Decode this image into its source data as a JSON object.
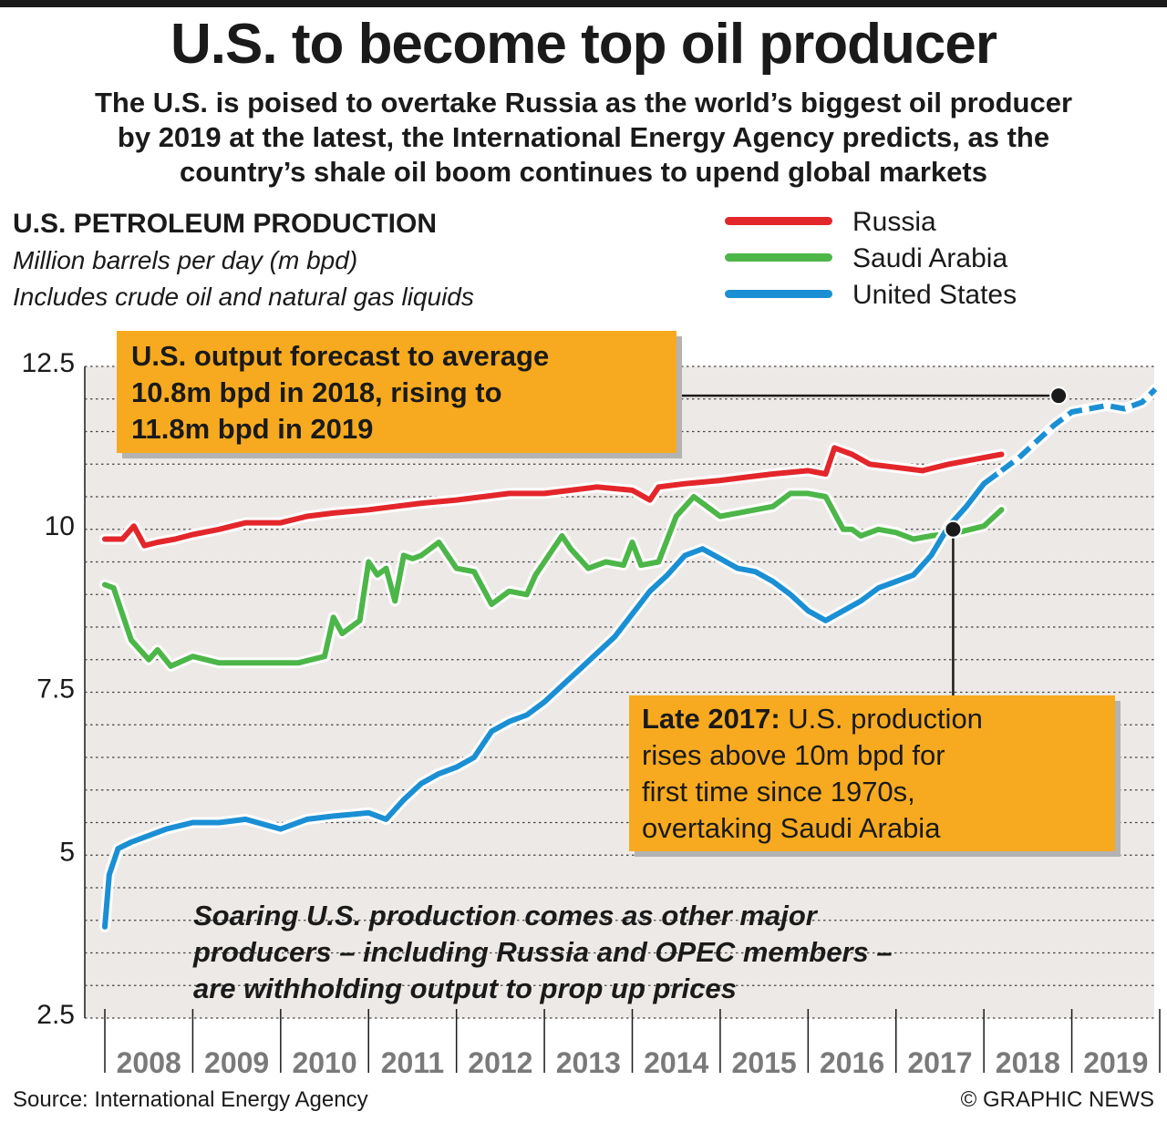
{
  "headline": "U.S. to become top oil producer",
  "intro": [
    "The U.S. is poised to overtake Russia as the world’s biggest oil producer",
    "by 2019 at the latest, the International Energy Agency predicts, as the",
    "country’s shale oil boom continues to upend global markets"
  ],
  "chart_title": "U.S. PETROLEUM PRODUCTION",
  "chart_subtitle_1": "Million barrels per day (m bpd)",
  "chart_subtitle_2": "Includes crude oil and natural gas liquids",
  "callout_forecast": [
    "U.S. output forecast to average",
    "10.8m bpd in 2018, rising to",
    "11.8m bpd in 2019"
  ],
  "callout_late2017": {
    "bold": "Late 2017:",
    "lines": [
      " U.S. production",
      "rises above 10m bpd for",
      "first time since 1970s,",
      "overtaking Saudi Arabia"
    ]
  },
  "note": [
    "Soaring U.S. production comes as other major",
    "producers – including Russia and OPEC members –",
    "are withholding output to prop up prices"
  ],
  "source": "Source: International Energy Agency",
  "credit": "© GRAPHIC NEWS",
  "colors": {
    "Russia": "#e3262a",
    "Saudi Arabia": "#4cb648",
    "United States": "#1b8fd4",
    "callout": "#f7aa1f",
    "plot_bg": "#ede9e6"
  },
  "chart_data": {
    "type": "line",
    "title": "U.S. PETROLEUM PRODUCTION",
    "ylabel": "Million barrels per day (m bpd)",
    "ylim": [
      2.5,
      12.5
    ],
    "yticks": [
      "12.5",
      "10",
      "7.5",
      "5",
      "2.5"
    ],
    "xlim": [
      2008,
      2020
    ],
    "xticks": [
      "2008",
      "2009",
      "2010",
      "2011",
      "2012",
      "2013",
      "2014",
      "2015",
      "2016",
      "2017",
      "2018",
      "2019"
    ],
    "grid": "dotted horizontal",
    "legend": "top-right",
    "series": [
      {
        "name": "Russia",
        "x": [
          2008.0,
          2008.2,
          2008.33,
          2008.45,
          2008.6,
          2008.8,
          2009.0,
          2009.3,
          2009.6,
          2010.0,
          2010.3,
          2010.6,
          2011.0,
          2011.3,
          2011.6,
          2012.0,
          2012.3,
          2012.6,
          2013.0,
          2013.3,
          2013.6,
          2014.0,
          2014.2,
          2014.3,
          2014.6,
          2015.0,
          2015.3,
          2015.6,
          2016.0,
          2016.2,
          2016.3,
          2016.5,
          2016.7,
          2017.0,
          2017.3,
          2017.6,
          2018.0,
          2018.2
        ],
        "y": [
          9.85,
          9.85,
          10.05,
          9.75,
          9.8,
          9.85,
          9.92,
          10.0,
          10.1,
          10.1,
          10.2,
          10.25,
          10.3,
          10.35,
          10.4,
          10.45,
          10.5,
          10.55,
          10.55,
          10.6,
          10.65,
          10.6,
          10.45,
          10.65,
          10.7,
          10.75,
          10.8,
          10.85,
          10.9,
          10.85,
          11.25,
          11.15,
          11.0,
          10.95,
          10.9,
          11.0,
          11.1,
          11.15
        ]
      },
      {
        "name": "Saudi Arabia",
        "x": [
          2008.0,
          2008.1,
          2008.3,
          2008.5,
          2008.6,
          2008.75,
          2009.0,
          2009.3,
          2009.6,
          2009.9,
          2010.2,
          2010.5,
          2010.6,
          2010.7,
          2010.9,
          2011.0,
          2011.1,
          2011.2,
          2011.3,
          2011.4,
          2011.5,
          2011.6,
          2011.8,
          2012.0,
          2012.2,
          2012.4,
          2012.6,
          2012.8,
          2012.9,
          2013.0,
          2013.2,
          2013.3,
          2013.5,
          2013.7,
          2013.9,
          2014.0,
          2014.1,
          2014.3,
          2014.5,
          2014.7,
          2014.9,
          2015.0,
          2015.2,
          2015.4,
          2015.6,
          2015.8,
          2016.0,
          2016.2,
          2016.4,
          2016.5,
          2016.6,
          2016.8,
          2017.0,
          2017.2,
          2017.4,
          2017.7,
          2018.0,
          2018.2
        ],
        "y": [
          9.15,
          9.1,
          8.3,
          8.0,
          8.15,
          7.9,
          8.05,
          7.95,
          7.95,
          7.95,
          7.95,
          8.05,
          8.65,
          8.4,
          8.6,
          9.5,
          9.3,
          9.4,
          8.9,
          9.6,
          9.55,
          9.6,
          9.8,
          9.4,
          9.35,
          8.85,
          9.05,
          9.0,
          9.3,
          9.5,
          9.9,
          9.7,
          9.4,
          9.5,
          9.45,
          9.8,
          9.45,
          9.5,
          10.2,
          10.5,
          10.3,
          10.2,
          10.25,
          10.3,
          10.35,
          10.55,
          10.55,
          10.5,
          10.0,
          10.0,
          9.9,
          10.0,
          9.95,
          9.85,
          9.9,
          9.95,
          10.05,
          10.3
        ]
      },
      {
        "name": "United States",
        "x": [
          2008.0,
          2008.05,
          2008.15,
          2008.3,
          2008.5,
          2008.7,
          2009.0,
          2009.3,
          2009.6,
          2010.0,
          2010.3,
          2010.6,
          2011.0,
          2011.2,
          2011.4,
          2011.6,
          2011.8,
          2012.0,
          2012.2,
          2012.4,
          2012.6,
          2012.8,
          2013.0,
          2013.2,
          2013.4,
          2013.6,
          2013.8,
          2014.0,
          2014.2,
          2014.4,
          2014.6,
          2014.8,
          2015.0,
          2015.2,
          2015.4,
          2015.6,
          2015.8,
          2016.0,
          2016.2,
          2016.4,
          2016.6,
          2016.8,
          2017.0,
          2017.2,
          2017.4,
          2017.6,
          2017.8,
          2018.0,
          2018.2
        ],
        "y": [
          3.9,
          4.7,
          5.1,
          5.2,
          5.3,
          5.4,
          5.5,
          5.5,
          5.55,
          5.4,
          5.55,
          5.6,
          5.65,
          5.55,
          5.85,
          6.1,
          6.25,
          6.35,
          6.5,
          6.9,
          7.05,
          7.15,
          7.35,
          7.6,
          7.85,
          8.1,
          8.35,
          8.7,
          9.05,
          9.3,
          9.6,
          9.7,
          9.55,
          9.4,
          9.35,
          9.2,
          9.0,
          8.75,
          8.6,
          8.75,
          8.9,
          9.1,
          9.2,
          9.3,
          9.6,
          10.05,
          10.35,
          10.7,
          10.9
        ]
      },
      {
        "name": "United States forecast",
        "x": [
          2018.2,
          2018.4,
          2018.6,
          2018.8,
          2019.0,
          2019.2,
          2019.4,
          2019.6,
          2019.8,
          2019.95
        ],
        "y": [
          10.9,
          11.1,
          11.35,
          11.6,
          11.8,
          11.85,
          11.9,
          11.85,
          11.95,
          12.15
        ]
      }
    ],
    "markers": [
      {
        "x": 2017.65,
        "y": 10.0
      },
      {
        "x": 2018.85,
        "y": 12.05
      }
    ]
  }
}
